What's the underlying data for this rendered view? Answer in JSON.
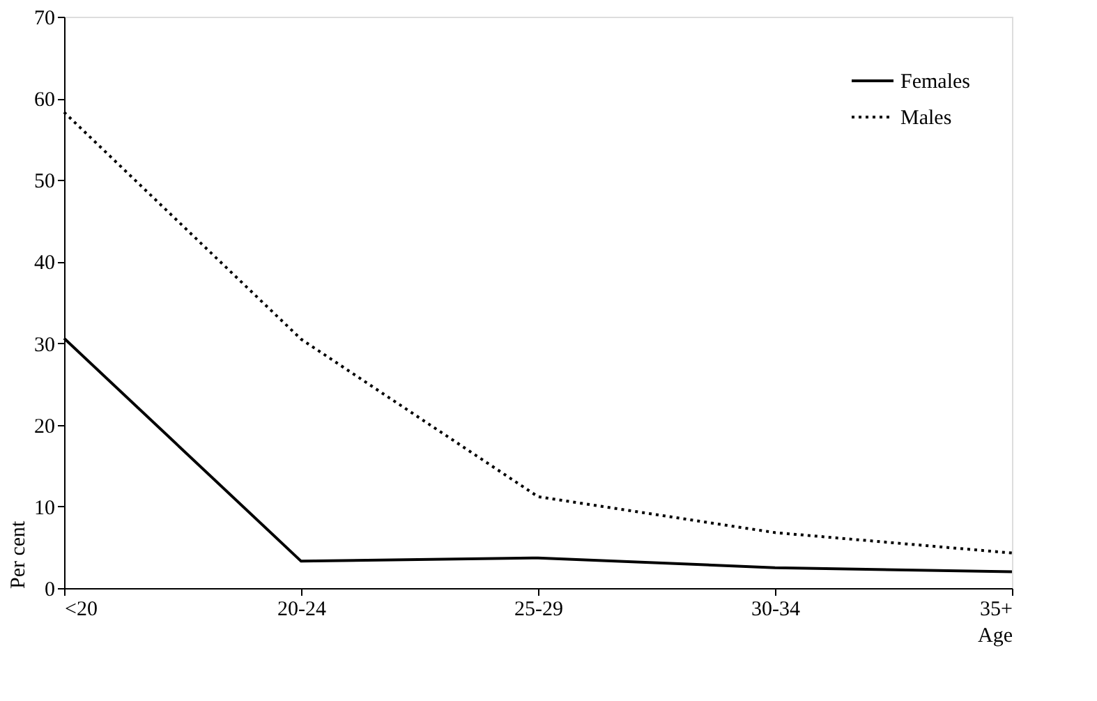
{
  "chart_data": {
    "type": "line",
    "xlabel": "Age",
    "ylabel": "Per cent",
    "categories": [
      "<20",
      "20-24",
      "25-29",
      "30-34",
      "35+"
    ],
    "series": [
      {
        "name": "Females",
        "color": "#000000",
        "line_style": "solid",
        "values": [
          30.6,
          3.3,
          3.7,
          2.5,
          2.0
        ]
      },
      {
        "name": "Males",
        "color": "#000000",
        "line_style": "dotted",
        "values": [
          58.3,
          30.5,
          11.2,
          6.8,
          4.3
        ]
      }
    ],
    "ylim": [
      0,
      70
    ],
    "yticks": [
      0,
      10,
      20,
      30,
      40,
      50,
      60,
      70
    ],
    "grid": false,
    "legend": "top right",
    "marker": "none"
  }
}
